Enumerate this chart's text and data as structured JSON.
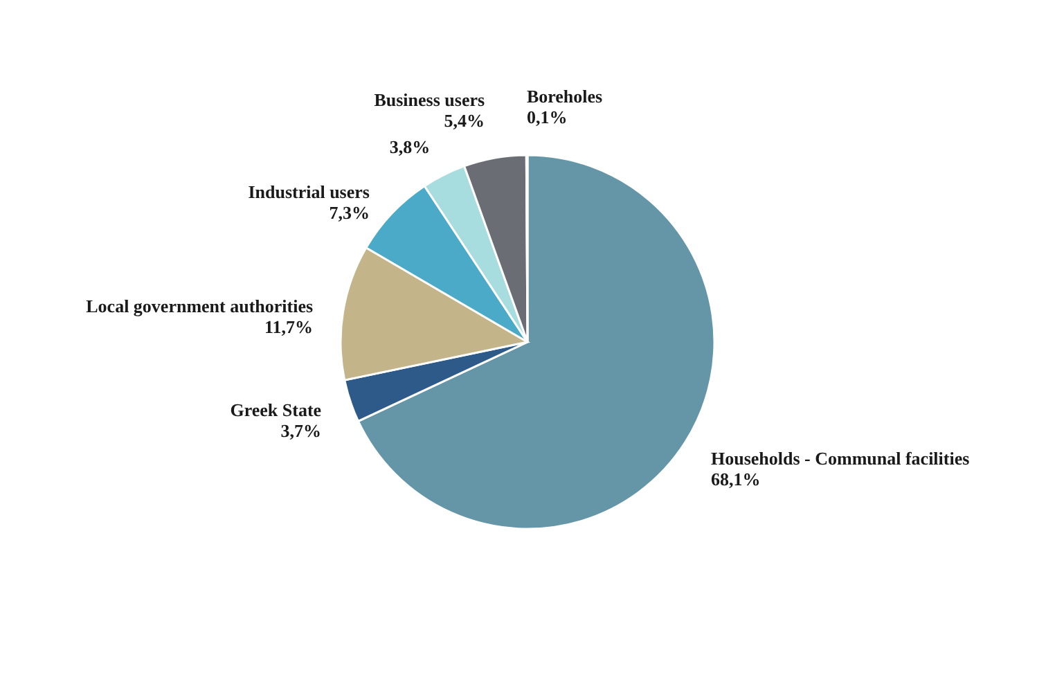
{
  "chart_data": {
    "type": "pie",
    "categories": [
      "Households - Communal facilities",
      "Greek State",
      "Local government authorities",
      "Industrial users",
      null,
      "Business users",
      "Boreholes"
    ],
    "values": [
      68.1,
      3.7,
      11.7,
      7.3,
      3.8,
      5.4,
      0.1
    ],
    "value_labels": [
      "68,1%",
      "3,7%",
      "11,7%",
      "7,3%",
      "3,8%",
      "5,4%",
      "0,1%"
    ],
    "colors": [
      "#6496a8",
      "#2e5a8a",
      "#c4b48a",
      "#4aaac8",
      "#a8dde0",
      "#6a6e74",
      "#707070"
    ]
  }
}
